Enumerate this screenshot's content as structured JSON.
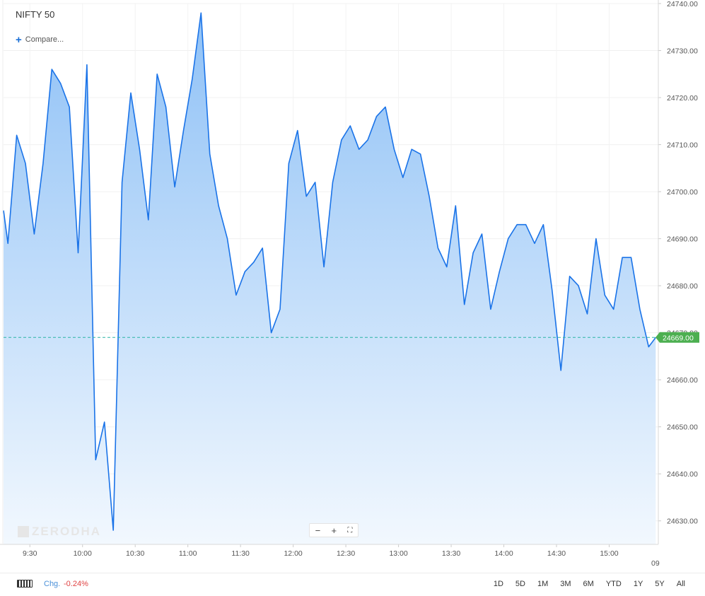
{
  "header": {
    "title": "NIFTY 50",
    "compare_label": "Compare..."
  },
  "watermark": "ZERODHA",
  "zoom": {
    "minus": "−",
    "plus": "+",
    "fullscreen": "⛶"
  },
  "footer": {
    "chg_label": "Chg.",
    "chg_value": "-0.24%",
    "periods": [
      "1D",
      "5D",
      "1M",
      "3M",
      "6M",
      "YTD",
      "1Y",
      "5Y",
      "All"
    ]
  },
  "chart_data": {
    "type": "area",
    "ylim": [
      24625,
      24740
    ],
    "y_ticks": [
      "24630.00",
      "24640.00",
      "24650.00",
      "24660.00",
      "24670.00",
      "24680.00",
      "24690.00",
      "24700.00",
      "24710.00",
      "24720.00",
      "24730.00",
      "24740.00"
    ],
    "x_tick_labels": [
      "9:30",
      "10:00",
      "10:30",
      "11:00",
      "11:30",
      "12:00",
      "12:30",
      "13:00",
      "13:30",
      "14:00",
      "14:30",
      "15:00"
    ],
    "x_tick_minutes": [
      570,
      600,
      630,
      660,
      690,
      720,
      750,
      780,
      810,
      840,
      870,
      900
    ],
    "x_range_minutes": [
      555,
      928
    ],
    "date_label": "09",
    "current_value": "24669.00",
    "current_price": 24669.0,
    "line_color": "#1a73e8",
    "fill_color_top": "#8fc1f6",
    "fill_color_bottom": "#f2f8fe",
    "badge_color": "#4caf50",
    "points": [
      [
        555,
        24696
      ],
      [
        557.5,
        24689
      ],
      [
        562.5,
        24712
      ],
      [
        567.5,
        24706
      ],
      [
        572.5,
        24691
      ],
      [
        577.5,
        24706
      ],
      [
        582.5,
        24726
      ],
      [
        587.5,
        24723
      ],
      [
        592.5,
        24718
      ],
      [
        597.5,
        24687
      ],
      [
        602.5,
        24727
      ],
      [
        607.5,
        24643
      ],
      [
        612.5,
        24651
      ],
      [
        617.5,
        24628
      ],
      [
        622.5,
        24702
      ],
      [
        627.5,
        24721
      ],
      [
        632.5,
        24709
      ],
      [
        637.5,
        24694
      ],
      [
        642.5,
        24725
      ],
      [
        647.5,
        24718
      ],
      [
        652.5,
        24701
      ],
      [
        657.5,
        24713
      ],
      [
        662.5,
        24724
      ],
      [
        667.5,
        24738
      ],
      [
        672.5,
        24708
      ],
      [
        677.5,
        24697
      ],
      [
        682.5,
        24690
      ],
      [
        687.5,
        24678
      ],
      [
        692.5,
        24683
      ],
      [
        697.5,
        24685
      ],
      [
        702.5,
        24688
      ],
      [
        707.5,
        24670
      ],
      [
        712.5,
        24675
      ],
      [
        717.5,
        24706
      ],
      [
        722.5,
        24713
      ],
      [
        727.5,
        24699
      ],
      [
        732.5,
        24702
      ],
      [
        737.5,
        24684
      ],
      [
        742.5,
        24702
      ],
      [
        747.5,
        24711
      ],
      [
        752.5,
        24714
      ],
      [
        757.5,
        24709
      ],
      [
        762.5,
        24711
      ],
      [
        767.5,
        24716
      ],
      [
        772.5,
        24718
      ],
      [
        777.5,
        24709
      ],
      [
        782.5,
        24703
      ],
      [
        787.5,
        24709
      ],
      [
        792.5,
        24708
      ],
      [
        797.5,
        24699
      ],
      [
        802.5,
        24688
      ],
      [
        807.5,
        24684
      ],
      [
        812.5,
        24697
      ],
      [
        817.5,
        24676
      ],
      [
        822.5,
        24687
      ],
      [
        827.5,
        24691
      ],
      [
        832.5,
        24675
      ],
      [
        837.5,
        24683
      ],
      [
        842.5,
        24690
      ],
      [
        847.5,
        24693
      ],
      [
        852.5,
        24693
      ],
      [
        857.5,
        24689
      ],
      [
        862.5,
        24693
      ],
      [
        867.5,
        24679
      ],
      [
        872.5,
        24662
      ],
      [
        877.5,
        24682
      ],
      [
        882.5,
        24680
      ],
      [
        887.5,
        24674
      ],
      [
        892.5,
        24690
      ],
      [
        897.5,
        24678
      ],
      [
        902.5,
        24675
      ],
      [
        907.5,
        24686
      ],
      [
        912.5,
        24686
      ],
      [
        917.5,
        24675
      ],
      [
        922.5,
        24667
      ],
      [
        926.5,
        24669
      ]
    ]
  }
}
